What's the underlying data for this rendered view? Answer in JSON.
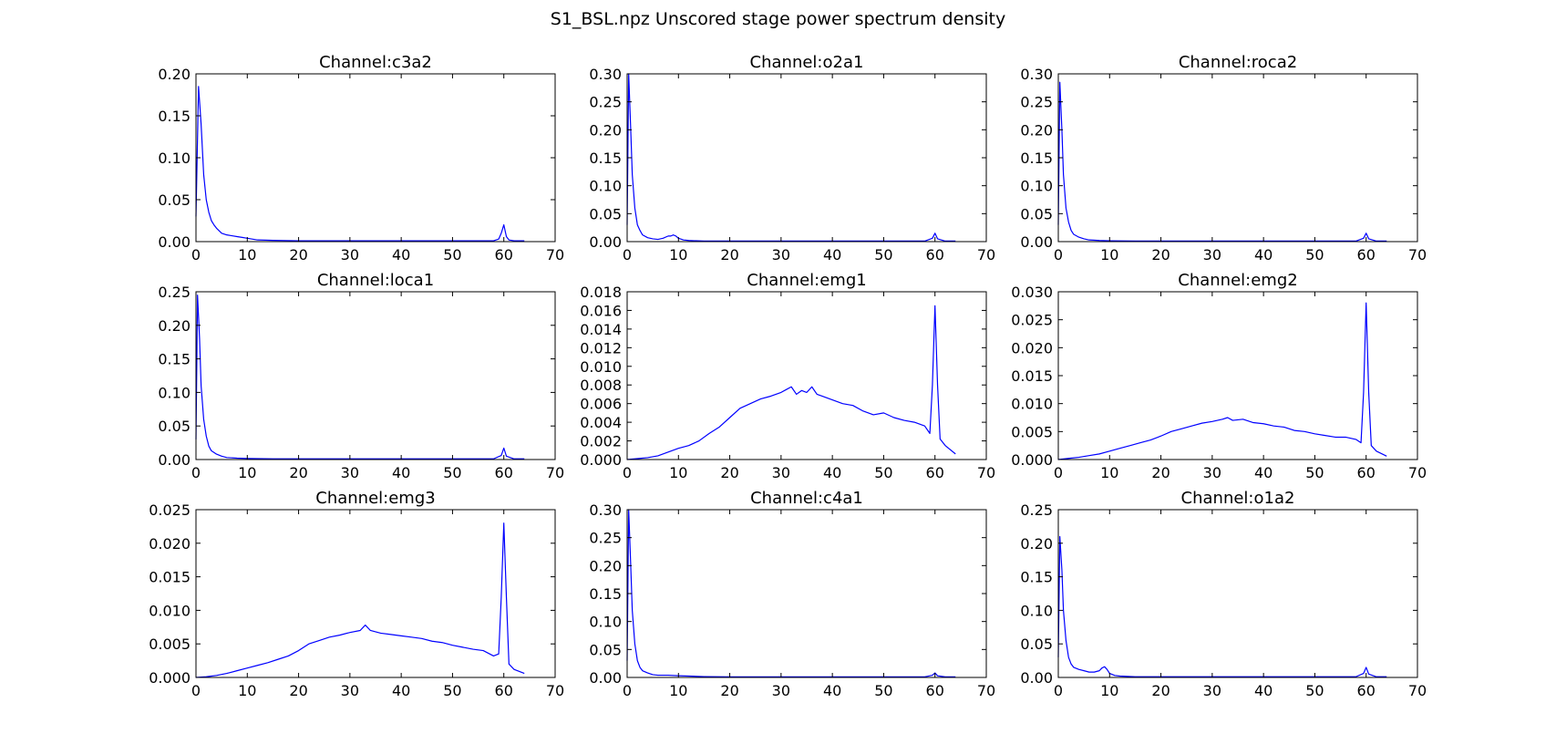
{
  "figure": {
    "title": "S1_BSL.npz Unscored stage power spectrum density",
    "line_color": "#0000ff"
  },
  "chart_data": [
    {
      "type": "line",
      "title": "Channel:c3a2",
      "xlabel": "",
      "ylabel": "",
      "xlim": [
        0,
        70
      ],
      "ylim": [
        0,
        0.2
      ],
      "xticks": [
        0,
        10,
        20,
        30,
        40,
        50,
        60,
        70
      ],
      "yticks": [
        0.0,
        0.05,
        0.1,
        0.15,
        0.2
      ],
      "ytick_labels": [
        "0.00",
        "0.05",
        "0.10",
        "0.15",
        "0.20"
      ],
      "grid": false,
      "series": [
        {
          "x": [
            0,
            0.5,
            1,
            1.5,
            2,
            2.5,
            3,
            3.5,
            4,
            5,
            6,
            7,
            8,
            9,
            10,
            12,
            15,
            20,
            30,
            40,
            50,
            58,
            59,
            59.5,
            60,
            60.5,
            61,
            62,
            64
          ],
          "y": [
            0.03,
            0.185,
            0.14,
            0.08,
            0.05,
            0.035,
            0.025,
            0.02,
            0.016,
            0.01,
            0.008,
            0.007,
            0.006,
            0.005,
            0.004,
            0.002,
            0.0015,
            0.001,
            0.001,
            0.001,
            0.001,
            0.001,
            0.003,
            0.01,
            0.02,
            0.006,
            0.002,
            0.001,
            0.001
          ]
        }
      ]
    },
    {
      "type": "line",
      "title": "Channel:o2a1",
      "xlabel": "",
      "ylabel": "",
      "xlim": [
        0,
        70
      ],
      "ylim": [
        0,
        0.3
      ],
      "xticks": [
        0,
        10,
        20,
        30,
        40,
        50,
        60,
        70
      ],
      "yticks": [
        0.0,
        0.05,
        0.1,
        0.15,
        0.2,
        0.25,
        0.3
      ],
      "ytick_labels": [
        "0.00",
        "0.05",
        "0.10",
        "0.15",
        "0.20",
        "0.25",
        "0.30"
      ],
      "grid": false,
      "series": [
        {
          "x": [
            0,
            0.3,
            0.7,
            1,
            1.5,
            2,
            2.5,
            3,
            4,
            5,
            6,
            7,
            8,
            8.5,
            9,
            9.5,
            10,
            11,
            12,
            15,
            20,
            30,
            40,
            50,
            58,
            59.5,
            60,
            60.5,
            62,
            64
          ],
          "y": [
            0.03,
            0.3,
            0.2,
            0.12,
            0.06,
            0.03,
            0.02,
            0.012,
            0.007,
            0.005,
            0.004,
            0.006,
            0.01,
            0.01,
            0.012,
            0.01,
            0.006,
            0.003,
            0.002,
            0.001,
            0.001,
            0.001,
            0.001,
            0.001,
            0.001,
            0.006,
            0.015,
            0.005,
            0.001,
            0.001
          ]
        }
      ]
    },
    {
      "type": "line",
      "title": "Channel:roca2",
      "xlabel": "",
      "ylabel": "",
      "xlim": [
        0,
        70
      ],
      "ylim": [
        0,
        0.3
      ],
      "xticks": [
        0,
        10,
        20,
        30,
        40,
        50,
        60,
        70
      ],
      "yticks": [
        0.0,
        0.05,
        0.1,
        0.15,
        0.2,
        0.25,
        0.3
      ],
      "ytick_labels": [
        "0.00",
        "0.05",
        "0.10",
        "0.15",
        "0.20",
        "0.25",
        "0.30"
      ],
      "grid": false,
      "series": [
        {
          "x": [
            0,
            0.3,
            0.7,
            1,
            1.5,
            2,
            2.5,
            3,
            4,
            5,
            6,
            8,
            10,
            15,
            20,
            30,
            40,
            50,
            58,
            59.5,
            60,
            60.5,
            62,
            64
          ],
          "y": [
            0.03,
            0.285,
            0.2,
            0.12,
            0.06,
            0.035,
            0.02,
            0.013,
            0.008,
            0.005,
            0.003,
            0.002,
            0.0015,
            0.001,
            0.001,
            0.001,
            0.001,
            0.001,
            0.001,
            0.006,
            0.015,
            0.005,
            0.001,
            0.001
          ]
        }
      ]
    },
    {
      "type": "line",
      "title": "Channel:loca1",
      "xlabel": "",
      "ylabel": "",
      "xlim": [
        0,
        70
      ],
      "ylim": [
        0,
        0.25
      ],
      "xticks": [
        0,
        10,
        20,
        30,
        40,
        50,
        60,
        70
      ],
      "yticks": [
        0.0,
        0.05,
        0.1,
        0.15,
        0.2,
        0.25
      ],
      "ytick_labels": [
        "0.00",
        "0.05",
        "0.10",
        "0.15",
        "0.20",
        "0.25"
      ],
      "grid": false,
      "series": [
        {
          "x": [
            0,
            0.3,
            0.7,
            1,
            1.5,
            2,
            2.5,
            3,
            4,
            5,
            6,
            8,
            10,
            15,
            20,
            30,
            40,
            50,
            58,
            59.5,
            60,
            60.5,
            62,
            64
          ],
          "y": [
            0.03,
            0.245,
            0.18,
            0.11,
            0.06,
            0.035,
            0.02,
            0.013,
            0.008,
            0.005,
            0.003,
            0.002,
            0.0015,
            0.001,
            0.001,
            0.001,
            0.001,
            0.001,
            0.001,
            0.006,
            0.017,
            0.005,
            0.001,
            0.001
          ]
        }
      ]
    },
    {
      "type": "line",
      "title": "Channel:emg1",
      "xlabel": "",
      "ylabel": "",
      "xlim": [
        0,
        70
      ],
      "ylim": [
        0,
        0.018
      ],
      "xticks": [
        0,
        10,
        20,
        30,
        40,
        50,
        60,
        70
      ],
      "yticks": [
        0.0,
        0.002,
        0.004,
        0.006,
        0.008,
        0.01,
        0.012,
        0.014,
        0.016,
        0.018
      ],
      "ytick_labels": [
        "0.000",
        "0.002",
        "0.004",
        "0.006",
        "0.008",
        "0.010",
        "0.012",
        "0.014",
        "0.016",
        "0.018"
      ],
      "grid": false,
      "series": [
        {
          "x": [
            0,
            2,
            4,
            6,
            8,
            10,
            12,
            14,
            16,
            18,
            20,
            22,
            24,
            26,
            28,
            30,
            31,
            32,
            33,
            34,
            35,
            36,
            37,
            38,
            40,
            42,
            44,
            46,
            48,
            50,
            52,
            54,
            56,
            58,
            59,
            59.5,
            60,
            60.5,
            61,
            62,
            64
          ],
          "y": [
            0.0,
            0.0001,
            0.0002,
            0.0004,
            0.0008,
            0.0012,
            0.0015,
            0.002,
            0.0028,
            0.0035,
            0.0045,
            0.0055,
            0.006,
            0.0065,
            0.0068,
            0.0072,
            0.0075,
            0.0078,
            0.007,
            0.0074,
            0.0072,
            0.0078,
            0.007,
            0.0068,
            0.0064,
            0.006,
            0.0058,
            0.0052,
            0.0048,
            0.005,
            0.0045,
            0.0042,
            0.004,
            0.0036,
            0.0028,
            0.008,
            0.0165,
            0.008,
            0.0022,
            0.0015,
            0.0006
          ]
        }
      ]
    },
    {
      "type": "line",
      "title": "Channel:emg2",
      "xlabel": "",
      "ylabel": "",
      "xlim": [
        0,
        70
      ],
      "ylim": [
        0,
        0.03
      ],
      "xticks": [
        0,
        10,
        20,
        30,
        40,
        50,
        60,
        70
      ],
      "yticks": [
        0.0,
        0.005,
        0.01,
        0.015,
        0.02,
        0.025,
        0.03
      ],
      "ytick_labels": [
        "0.000",
        "0.005",
        "0.010",
        "0.015",
        "0.020",
        "0.025",
        "0.030"
      ],
      "grid": false,
      "series": [
        {
          "x": [
            0,
            2,
            4,
            6,
            8,
            10,
            12,
            14,
            16,
            18,
            20,
            22,
            24,
            26,
            28,
            30,
            32,
            33,
            34,
            36,
            38,
            40,
            42,
            44,
            46,
            48,
            50,
            52,
            54,
            56,
            58,
            59,
            59.5,
            60,
            60.5,
            61,
            62,
            64
          ],
          "y": [
            0.0,
            0.0002,
            0.0004,
            0.0007,
            0.001,
            0.0015,
            0.002,
            0.0025,
            0.003,
            0.0035,
            0.0042,
            0.005,
            0.0055,
            0.006,
            0.0065,
            0.0068,
            0.0072,
            0.0075,
            0.007,
            0.0072,
            0.0066,
            0.0064,
            0.006,
            0.0058,
            0.0052,
            0.005,
            0.0046,
            0.0043,
            0.004,
            0.004,
            0.0036,
            0.003,
            0.012,
            0.028,
            0.012,
            0.0025,
            0.0015,
            0.0006
          ]
        }
      ]
    },
    {
      "type": "line",
      "title": "Channel:emg3",
      "xlabel": "",
      "ylabel": "",
      "xlim": [
        0,
        70
      ],
      "ylim": [
        0,
        0.025
      ],
      "xticks": [
        0,
        10,
        20,
        30,
        40,
        50,
        60,
        70
      ],
      "yticks": [
        0.0,
        0.005,
        0.01,
        0.015,
        0.02,
        0.025
      ],
      "ytick_labels": [
        "0.000",
        "0.005",
        "0.010",
        "0.015",
        "0.020",
        "0.025"
      ],
      "grid": false,
      "series": [
        {
          "x": [
            0,
            2,
            4,
            6,
            8,
            10,
            12,
            14,
            16,
            18,
            20,
            22,
            24,
            26,
            28,
            30,
            32,
            33,
            34,
            36,
            38,
            40,
            42,
            44,
            46,
            48,
            50,
            52,
            54,
            56,
            58,
            59,
            59.5,
            60,
            60.5,
            61,
            62,
            64
          ],
          "y": [
            0.0,
            0.0001,
            0.0003,
            0.0006,
            0.001,
            0.0014,
            0.0018,
            0.0022,
            0.0027,
            0.0032,
            0.004,
            0.005,
            0.0055,
            0.006,
            0.0063,
            0.0067,
            0.007,
            0.0078,
            0.007,
            0.0066,
            0.0064,
            0.0062,
            0.006,
            0.0058,
            0.0054,
            0.0052,
            0.0048,
            0.0045,
            0.0042,
            0.004,
            0.0032,
            0.0035,
            0.012,
            0.023,
            0.012,
            0.002,
            0.0012,
            0.0006
          ]
        }
      ]
    },
    {
      "type": "line",
      "title": "Channel:c4a1",
      "xlabel": "",
      "ylabel": "",
      "xlim": [
        0,
        70
      ],
      "ylim": [
        0,
        0.3
      ],
      "xticks": [
        0,
        10,
        20,
        30,
        40,
        50,
        60,
        70
      ],
      "yticks": [
        0.0,
        0.05,
        0.1,
        0.15,
        0.2,
        0.25,
        0.3
      ],
      "ytick_labels": [
        "0.00",
        "0.05",
        "0.10",
        "0.15",
        "0.20",
        "0.25",
        "0.30"
      ],
      "grid": false,
      "series": [
        {
          "x": [
            0,
            0.3,
            0.7,
            1,
            1.5,
            2,
            2.5,
            3,
            4,
            5,
            6,
            8,
            10,
            15,
            20,
            30,
            40,
            50,
            58,
            59.5,
            60,
            60.5,
            62,
            64
          ],
          "y": [
            0.03,
            0.3,
            0.2,
            0.12,
            0.06,
            0.03,
            0.018,
            0.012,
            0.008,
            0.005,
            0.004,
            0.004,
            0.003,
            0.0015,
            0.001,
            0.001,
            0.001,
            0.001,
            0.001,
            0.004,
            0.008,
            0.003,
            0.001,
            0.001
          ]
        }
      ]
    },
    {
      "type": "line",
      "title": "Channel:o1a2",
      "xlabel": "",
      "ylabel": "",
      "xlim": [
        0,
        70
      ],
      "ylim": [
        0,
        0.25
      ],
      "xticks": [
        0,
        10,
        20,
        30,
        40,
        50,
        60,
        70
      ],
      "yticks": [
        0.0,
        0.05,
        0.1,
        0.15,
        0.2,
        0.25
      ],
      "ytick_labels": [
        "0.00",
        "0.05",
        "0.10",
        "0.15",
        "0.20",
        "0.25"
      ],
      "grid": false,
      "series": [
        {
          "x": [
            0,
            0.3,
            0.7,
            1,
            1.5,
            2,
            2.5,
            3,
            4,
            5,
            6,
            7,
            8,
            8.5,
            9,
            9.5,
            10,
            11,
            12,
            15,
            20,
            30,
            40,
            50,
            58,
            59.5,
            60,
            60.5,
            62,
            64
          ],
          "y": [
            0.03,
            0.21,
            0.16,
            0.1,
            0.055,
            0.03,
            0.02,
            0.015,
            0.012,
            0.01,
            0.008,
            0.008,
            0.01,
            0.014,
            0.016,
            0.012,
            0.006,
            0.003,
            0.002,
            0.001,
            0.001,
            0.001,
            0.001,
            0.001,
            0.001,
            0.006,
            0.015,
            0.005,
            0.001,
            0.001
          ]
        }
      ]
    }
  ]
}
